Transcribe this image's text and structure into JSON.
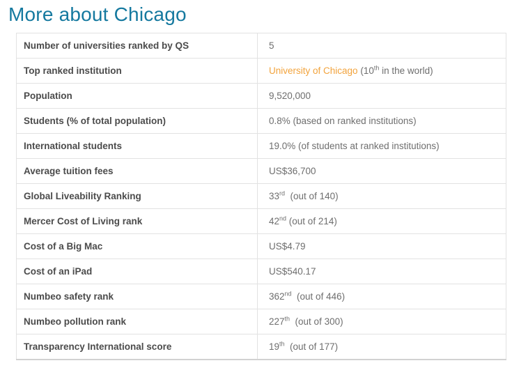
{
  "title": "More about Chicago",
  "colors": {
    "title": "#15799F",
    "link": "#F2A33C",
    "label_text": "#4B4B4B",
    "value_text": "#6E6E6E",
    "border": "#E2E2E2"
  },
  "table": {
    "rows": [
      {
        "label": "Number of universities ranked by QS",
        "value": [
          {
            "type": "text",
            "text": "5"
          }
        ]
      },
      {
        "label": "Top ranked institution",
        "value": [
          {
            "type": "link",
            "text": "University of Chicago"
          },
          {
            "type": "text",
            "text": " (10"
          },
          {
            "type": "sup",
            "text": "th"
          },
          {
            "type": "text",
            "text": " in the world)"
          }
        ]
      },
      {
        "label": "Population",
        "value": [
          {
            "type": "text",
            "text": "9,520,000"
          }
        ]
      },
      {
        "label": "Students (% of total population)",
        "value": [
          {
            "type": "text",
            "text": "0.8% (based on ranked institutions)"
          }
        ]
      },
      {
        "label": "International students",
        "value": [
          {
            "type": "text",
            "text": "19.0% (of students at ranked institutions)"
          }
        ]
      },
      {
        "label": "Average tuition fees",
        "value": [
          {
            "type": "text",
            "text": "US$36,700"
          }
        ]
      },
      {
        "label": "Global Liveability Ranking",
        "value": [
          {
            "type": "text",
            "text": "33"
          },
          {
            "type": "sup",
            "text": "rd"
          },
          {
            "type": "text",
            "text": "  (out of 140)"
          }
        ]
      },
      {
        "label": "Mercer Cost of Living rank",
        "value": [
          {
            "type": "text",
            "text": "42"
          },
          {
            "type": "sup",
            "text": "nd"
          },
          {
            "type": "text",
            "text": " (out of 214)"
          }
        ]
      },
      {
        "label": "Cost of a Big Mac",
        "value": [
          {
            "type": "text",
            "text": "US$4.79"
          }
        ]
      },
      {
        "label": "Cost of an iPad",
        "value": [
          {
            "type": "text",
            "text": "US$540.17"
          }
        ]
      },
      {
        "label": "Numbeo safety rank",
        "value": [
          {
            "type": "text",
            "text": "362"
          },
          {
            "type": "sup",
            "text": "nd"
          },
          {
            "type": "text",
            "text": "  (out of 446)"
          }
        ]
      },
      {
        "label": "Numbeo pollution rank",
        "value": [
          {
            "type": "text",
            "text": "227"
          },
          {
            "type": "sup",
            "text": "th"
          },
          {
            "type": "text",
            "text": "  (out of 300)"
          }
        ]
      },
      {
        "label": "Transparency International score",
        "value": [
          {
            "type": "text",
            "text": "19"
          },
          {
            "type": "sup",
            "text": "th"
          },
          {
            "type": "text",
            "text": "  (out of 177)"
          }
        ]
      }
    ]
  }
}
